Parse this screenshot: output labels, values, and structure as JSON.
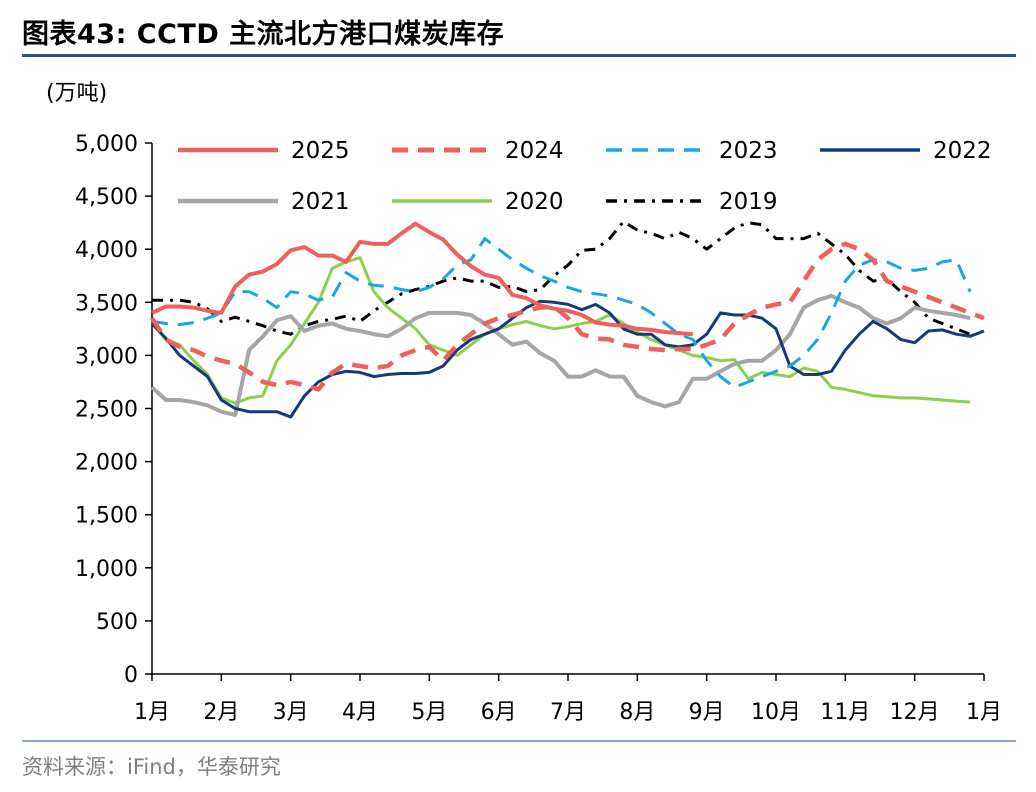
{
  "page": {
    "title": "图表43:  CCTD 主流北方港口煤炭库存",
    "source": "资料来源：iFind，华泰研究"
  },
  "chart_data": {
    "type": "line",
    "title": "图表43:  CCTD 主流北方港口煤炭库存",
    "unit_label": "(万吨)",
    "xlabel": "",
    "ylabel": "(万吨)",
    "ylim": [
      0,
      5000
    ],
    "y_ticks": [
      0,
      500,
      1000,
      1500,
      2000,
      2500,
      3000,
      3500,
      4000,
      4500,
      5000
    ],
    "y_tick_labels": [
      "0",
      "500",
      "1,000",
      "1,500",
      "2,000",
      "2,500",
      "3,000",
      "3,500",
      "4,000",
      "4,500",
      "5,000"
    ],
    "x_domain": [
      0,
      12
    ],
    "x_ticks": [
      0,
      1,
      2,
      3,
      4,
      5,
      6,
      7,
      8,
      9,
      10,
      11,
      12
    ],
    "x_tick_labels": [
      "1月",
      "2月",
      "3月",
      "4月",
      "5月",
      "6月",
      "7月",
      "8月",
      "9月",
      "10月",
      "11月",
      "12月",
      "1月"
    ],
    "grid": false,
    "legend_position": "top",
    "series": [
      {
        "name": "2025",
        "color": "#f0605a",
        "dash": "solid",
        "x": [
          0.0,
          0.2,
          0.4,
          0.6,
          0.8,
          1.0,
          1.2,
          1.4,
          1.6,
          1.8,
          2.0,
          2.2,
          2.4,
          2.6,
          2.8,
          3.0,
          3.2,
          3.4,
          3.6,
          3.8,
          4.0,
          4.2,
          4.4,
          4.6,
          4.8,
          5.0,
          5.2,
          5.4,
          5.6,
          5.8,
          6.0,
          6.2,
          6.4,
          6.6,
          6.8,
          7.0,
          7.2,
          7.4,
          7.6,
          7.8
        ],
        "y": [
          3400,
          3460,
          3460,
          3450,
          3420,
          3400,
          3650,
          3760,
          3790,
          3860,
          3990,
          4020,
          3940,
          3940,
          3880,
          4070,
          4050,
          4050,
          4150,
          4240,
          4160,
          4090,
          3950,
          3840,
          3760,
          3730,
          3570,
          3540,
          3470,
          3440,
          3420,
          3380,
          3310,
          3290,
          3280,
          3250,
          3240,
          3220,
          3210,
          3200
        ]
      },
      {
        "name": "2024",
        "color": "#f0605a",
        "dash": "dashed",
        "x": [
          0.0,
          0.2,
          0.4,
          0.6,
          0.8,
          1.0,
          1.2,
          1.4,
          1.6,
          1.8,
          2.0,
          2.2,
          2.4,
          2.6,
          2.8,
          3.0,
          3.2,
          3.4,
          3.6,
          3.8,
          4.0,
          4.2,
          4.4,
          4.6,
          4.8,
          5.0,
          5.2,
          5.4,
          5.6,
          5.8,
          6.0,
          6.2,
          6.4,
          6.6,
          6.8,
          7.0,
          7.2,
          7.4,
          7.6,
          7.8,
          8.0,
          8.2,
          8.4,
          8.6,
          8.8,
          9.0,
          9.2,
          9.4,
          9.6,
          9.8,
          10.0,
          10.2,
          10.4,
          10.6,
          10.8,
          11.0,
          11.2,
          11.4,
          11.6,
          11.8,
          12.0
        ],
        "y": [
          3350,
          3150,
          3080,
          3050,
          2990,
          2950,
          2920,
          2840,
          2750,
          2720,
          2750,
          2720,
          2680,
          2840,
          2920,
          2900,
          2880,
          2900,
          3000,
          3050,
          3080,
          2950,
          3100,
          3200,
          3300,
          3350,
          3380,
          3420,
          3450,
          3460,
          3350,
          3200,
          3160,
          3150,
          3100,
          3080,
          3060,
          3050,
          3060,
          3060,
          3100,
          3150,
          3300,
          3380,
          3450,
          3480,
          3500,
          3700,
          3900,
          4000,
          4050,
          4000,
          3900,
          3700,
          3650,
          3600,
          3550,
          3500,
          3450,
          3400,
          3350
        ]
      },
      {
        "name": "2023",
        "color": "#1aa6e0",
        "dash": "dashed",
        "x": [
          0.0,
          0.2,
          0.4,
          0.6,
          0.8,
          1.0,
          1.2,
          1.4,
          1.6,
          1.8,
          2.0,
          2.2,
          2.4,
          2.6,
          2.8,
          3.0,
          3.2,
          3.4,
          3.6,
          3.8,
          4.0,
          4.2,
          4.4,
          4.6,
          4.8,
          5.0,
          5.2,
          5.4,
          5.6,
          5.8,
          6.0,
          6.2,
          6.4,
          6.6,
          6.8,
          7.0,
          7.2,
          7.4,
          7.6,
          7.8,
          8.0,
          8.2,
          8.4,
          8.6,
          8.8,
          9.0,
          9.2,
          9.4,
          9.6,
          9.8,
          10.0,
          10.2,
          10.4,
          10.6,
          10.8,
          11.0,
          11.2,
          11.4,
          11.6,
          11.8
        ],
        "y": [
          3320,
          3300,
          3290,
          3310,
          3350,
          3400,
          3600,
          3600,
          3540,
          3450,
          3600,
          3580,
          3520,
          3550,
          3780,
          3700,
          3660,
          3650,
          3620,
          3600,
          3640,
          3720,
          3850,
          3900,
          4100,
          4000,
          3900,
          3820,
          3750,
          3700,
          3640,
          3600,
          3580,
          3560,
          3520,
          3480,
          3400,
          3300,
          3200,
          3150,
          2950,
          2800,
          2700,
          2750,
          2800,
          2850,
          2900,
          3000,
          3150,
          3400,
          3700,
          3850,
          3900,
          3880,
          3820,
          3800,
          3820,
          3880,
          3900,
          3600
        ]
      },
      {
        "name": "2022",
        "color": "#143a7a",
        "dash": "solid",
        "x": [
          0.0,
          0.2,
          0.4,
          0.6,
          0.8,
          1.0,
          1.2,
          1.4,
          1.6,
          1.8,
          2.0,
          2.2,
          2.4,
          2.6,
          2.8,
          3.0,
          3.2,
          3.4,
          3.6,
          3.8,
          4.0,
          4.2,
          4.4,
          4.6,
          4.8,
          5.0,
          5.2,
          5.4,
          5.6,
          5.8,
          6.0,
          6.2,
          6.4,
          6.6,
          6.8,
          7.0,
          7.2,
          7.4,
          7.6,
          7.8,
          8.0,
          8.2,
          8.4,
          8.6,
          8.8,
          9.0,
          9.2,
          9.4,
          9.6,
          9.8,
          10.0,
          10.2,
          10.4,
          10.6,
          10.8,
          11.0,
          11.2,
          11.4,
          11.6,
          11.8,
          12.0
        ],
        "y": [
          3300,
          3160,
          3000,
          2900,
          2800,
          2580,
          2500,
          2470,
          2470,
          2470,
          2420,
          2620,
          2750,
          2820,
          2850,
          2840,
          2800,
          2820,
          2830,
          2830,
          2840,
          2900,
          3050,
          3150,
          3200,
          3250,
          3350,
          3450,
          3510,
          3500,
          3480,
          3430,
          3480,
          3400,
          3250,
          3200,
          3200,
          3100,
          3080,
          3100,
          3200,
          3400,
          3380,
          3380,
          3350,
          3250,
          2900,
          2820,
          2820,
          2850,
          3050,
          3200,
          3320,
          3250,
          3150,
          3120,
          3230,
          3240,
          3200,
          3180,
          3230
        ]
      },
      {
        "name": "2021",
        "color": "#a6a6a6",
        "dash": "solid",
        "x": [
          0.0,
          0.2,
          0.4,
          0.6,
          0.8,
          1.0,
          1.2,
          1.4,
          1.6,
          1.8,
          2.0,
          2.2,
          2.4,
          2.6,
          2.8,
          3.0,
          3.2,
          3.4,
          3.6,
          3.8,
          4.0,
          4.2,
          4.4,
          4.6,
          4.8,
          5.0,
          5.2,
          5.4,
          5.6,
          5.8,
          6.0,
          6.2,
          6.4,
          6.6,
          6.8,
          7.0,
          7.2,
          7.4,
          7.6,
          7.8,
          8.0,
          8.2,
          8.4,
          8.6,
          8.8,
          9.0,
          9.2,
          9.4,
          9.6,
          9.8,
          10.0,
          10.2,
          10.4,
          10.6,
          10.8,
          11.0,
          11.2,
          11.4,
          11.6,
          11.8
        ],
        "y": [
          2700,
          2580,
          2580,
          2560,
          2530,
          2470,
          2440,
          3050,
          3180,
          3330,
          3370,
          3230,
          3280,
          3300,
          3250,
          3230,
          3200,
          3180,
          3250,
          3350,
          3400,
          3400,
          3400,
          3380,
          3300,
          3200,
          3100,
          3130,
          3020,
          2950,
          2800,
          2800,
          2860,
          2800,
          2800,
          2620,
          2560,
          2520,
          2560,
          2780,
          2780,
          2850,
          2920,
          2950,
          2950,
          3050,
          3200,
          3450,
          3520,
          3560,
          3500,
          3450,
          3350,
          3300,
          3350,
          3450,
          3420,
          3400,
          3380,
          3350
        ]
      },
      {
        "name": "2020",
        "color": "#8ccf4d",
        "dash": "solid",
        "x": [
          0.0,
          0.2,
          0.4,
          0.6,
          0.8,
          1.0,
          1.2,
          1.4,
          1.6,
          1.8,
          2.0,
          2.2,
          2.4,
          2.6,
          2.8,
          3.0,
          3.2,
          3.4,
          3.6,
          3.8,
          4.0,
          4.2,
          4.4,
          4.6,
          4.8,
          5.0,
          5.2,
          5.4,
          5.6,
          5.8,
          6.0,
          6.2,
          6.4,
          6.6,
          6.8,
          7.0,
          7.2,
          7.4,
          7.6,
          7.8,
          8.0,
          8.2,
          8.4,
          8.6,
          8.8,
          9.0,
          9.2,
          9.4,
          9.6,
          9.8,
          10.0,
          10.2,
          10.4,
          10.6,
          10.8,
          11.0,
          11.2,
          11.4,
          11.6,
          11.8
        ],
        "y": [
          3300,
          3150,
          3100,
          2950,
          2820,
          2600,
          2550,
          2600,
          2620,
          2950,
          3100,
          3300,
          3500,
          3820,
          3880,
          3920,
          3600,
          3450,
          3350,
          3250,
          3100,
          3050,
          3000,
          3100,
          3200,
          3250,
          3290,
          3320,
          3280,
          3250,
          3270,
          3300,
          3320,
          3380,
          3300,
          3220,
          3150,
          3100,
          3050,
          3000,
          2980,
          2950,
          2960,
          2780,
          2840,
          2820,
          2800,
          2880,
          2850,
          2700,
          2680,
          2650,
          2620,
          2610,
          2600,
          2600,
          2590,
          2580,
          2570,
          2560
        ]
      },
      {
        "name": "2019",
        "color": "#000000",
        "dash": "dashdot",
        "x": [
          0.0,
          0.2,
          0.4,
          0.6,
          0.8,
          1.0,
          1.2,
          1.4,
          1.6,
          1.8,
          2.0,
          2.2,
          2.4,
          2.6,
          2.8,
          3.0,
          3.2,
          3.4,
          3.6,
          3.8,
          4.0,
          4.2,
          4.4,
          4.6,
          4.8,
          5.0,
          5.2,
          5.4,
          5.6,
          5.8,
          6.0,
          6.2,
          6.4,
          6.6,
          6.8,
          7.0,
          7.2,
          7.4,
          7.6,
          7.8,
          8.0,
          8.2,
          8.4,
          8.6,
          8.8,
          9.0,
          9.2,
          9.4,
          9.6,
          9.8,
          10.0,
          10.2,
          10.4,
          10.6,
          10.8,
          11.0,
          11.2,
          11.4,
          11.6,
          11.8
        ],
        "y": [
          3520,
          3520,
          3520,
          3500,
          3440,
          3320,
          3360,
          3320,
          3280,
          3230,
          3200,
          3280,
          3320,
          3340,
          3370,
          3320,
          3420,
          3500,
          3580,
          3620,
          3650,
          3700,
          3730,
          3700,
          3700,
          3640,
          3650,
          3600,
          3620,
          3750,
          3850,
          3990,
          4000,
          4100,
          4260,
          4180,
          4150,
          4100,
          4160,
          4100,
          4000,
          4100,
          4200,
          4250,
          4230,
          4100,
          4100,
          4100,
          4150,
          4050,
          3950,
          3800,
          3700,
          3720,
          3600,
          3500,
          3350,
          3300,
          3250,
          3200
        ]
      }
    ]
  }
}
